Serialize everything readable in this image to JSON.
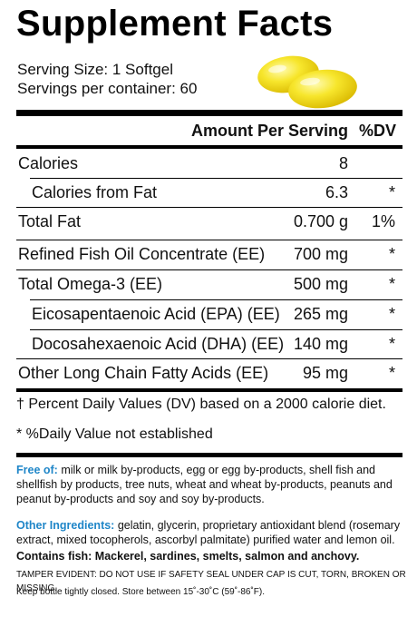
{
  "title": "Supplement Facts",
  "serving": {
    "size": "Serving Size: 1 Softgel",
    "per_container": "Servings per container:  60"
  },
  "table": {
    "header_amount": "Amount Per Serving",
    "header_dv": "%DV",
    "rows": [
      {
        "name": "Calories",
        "amount": "8",
        "dv": ""
      },
      {
        "name": "Calories from Fat",
        "amount": "6.3",
        "dv": "*"
      },
      {
        "name": "Total Fat",
        "amount": "0.700 g",
        "dv": "1%"
      },
      {
        "name": "Refined Fish Oil Concentrate (EE)",
        "amount": "700 mg",
        "dv": "*"
      },
      {
        "name": "Total Omega-3 (EE)",
        "amount": "500 mg",
        "dv": "*"
      },
      {
        "name": "Eicosapentaenoic Acid (EPA) (EE)",
        "amount": "265 mg",
        "dv": "*"
      },
      {
        "name": "Docosahexaenoic Acid (DHA) (EE)",
        "amount": "140 mg",
        "dv": "*"
      },
      {
        "name": "Other Long Chain Fatty Acids (EE)",
        "amount": "95 mg",
        "dv": "*"
      }
    ]
  },
  "footnotes": {
    "daily_values": "† Percent Daily Values (DV) based on a 2000 calorie diet.",
    "not_established": "* %Daily Value not established"
  },
  "free_of": {
    "label": "Free of:",
    "text": " milk or milk by-products, egg or egg by-products, shell fish and shellfish by products, tree nuts, wheat and wheat by-products, peanuts and peanut by-products and soy and soy by-products."
  },
  "ingredients": {
    "label": "Other Ingredients:",
    "text": " gelatin, glycerin, proprietary antioxidant blend (rosemary extract, mixed tocopherols, ascorbyl palmitate) purified water and lemon oil."
  },
  "contains": "Contains fish: Mackerel, sardines, smelts, salmon and anchovy.",
  "tamper": "TAMPER EVIDENT: DO NOT USE IF SAFETY SEAL UNDER CAP IS CUT, TORN, BROKEN OR MISSING.",
  "storage": "Keep bottle tightly closed. Store between 15˚-30˚C (59˚-86˚F).",
  "colors": {
    "accent_blue": "#1f86c8",
    "softgel_yellow": "#f2dd1a"
  }
}
